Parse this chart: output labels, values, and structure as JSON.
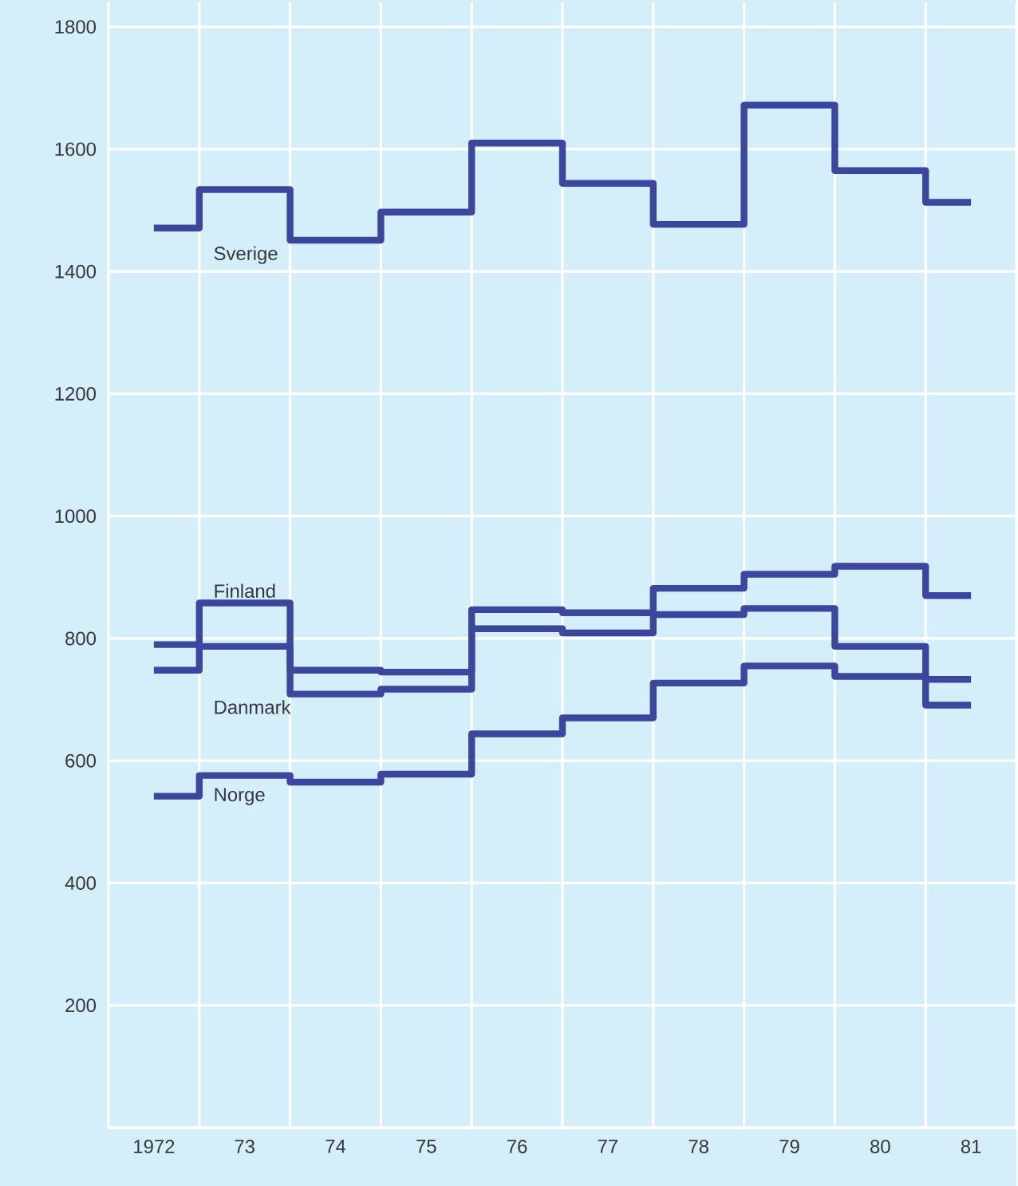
{
  "chart_data": {
    "type": "step",
    "categories": [
      "1972",
      "73",
      "74",
      "75",
      "76",
      "77",
      "78",
      "79",
      "80",
      "81"
    ],
    "series": [
      {
        "name": "Sverige",
        "color": "#3b469c",
        "values": [
          1471,
          1534,
          1451,
          1497,
          1610,
          1544,
          1477,
          1672,
          1565,
          1513
        ]
      },
      {
        "name": "Finland",
        "color": "#3b469c",
        "values": [
          748,
          858,
          748,
          745,
          847,
          842,
          882,
          905,
          918,
          870
        ]
      },
      {
        "name": "Danmark",
        "color": "#3b469c",
        "values": [
          790,
          787,
          709,
          717,
          816,
          809,
          839,
          849,
          787,
          691
        ]
      },
      {
        "name": "Norge",
        "color": "#3b469c",
        "values": [
          542,
          576,
          565,
          578,
          644,
          670,
          727,
          755,
          738,
          733
        ]
      }
    ],
    "ylim": [
      0,
      1840
    ],
    "yticks": [
      {
        "value": 0,
        "label": null
      },
      200,
      400,
      600,
      800,
      1000,
      1200,
      1400,
      1600,
      1800
    ],
    "grid": true
  }
}
